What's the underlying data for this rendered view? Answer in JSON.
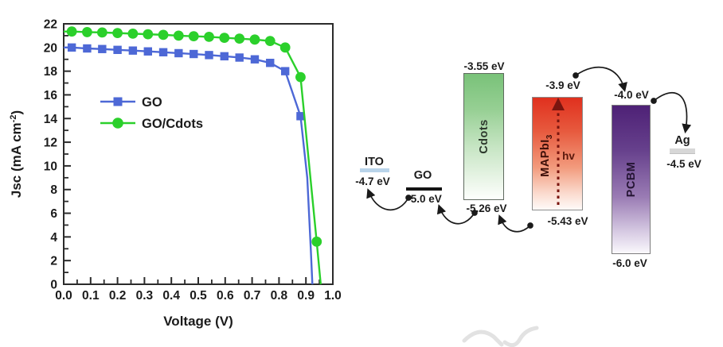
{
  "chart_data": {
    "type": "line",
    "title": "",
    "xlabel": "Voltage (V)",
    "ylabel": {
      "text": "Jsc (mA cm",
      "sup": "-2",
      "close": ")"
    },
    "xlim": [
      0.0,
      1.0
    ],
    "ylim": [
      0,
      22
    ],
    "xticks": [
      "0.0",
      "0.1",
      "0.2",
      "0.3",
      "0.4",
      "0.5",
      "0.6",
      "0.7",
      "0.8",
      "0.9",
      "1.0"
    ],
    "yticks": [
      0,
      2,
      4,
      6,
      8,
      10,
      12,
      14,
      16,
      18,
      20,
      22
    ],
    "x_minor_step": 0.05,
    "y_minor_step": 1,
    "grid": false,
    "legend_position": "inside-center-left",
    "series": [
      {
        "name": "GO",
        "color": "#4d68d6",
        "marker": "square",
        "x": [
          0.03,
          0.087,
          0.143,
          0.2,
          0.257,
          0.313,
          0.37,
          0.427,
          0.483,
          0.54,
          0.597,
          0.653,
          0.71,
          0.767,
          0.823,
          0.88
        ],
        "y": [
          20.0,
          19.92,
          19.87,
          19.8,
          19.74,
          19.67,
          19.6,
          19.52,
          19.45,
          19.36,
          19.26,
          19.15,
          19.0,
          18.7,
          18.0,
          14.2
        ],
        "tail": [
          [
            0.905,
            9.0
          ],
          [
            0.918,
            3.0
          ],
          [
            0.924,
            0
          ]
        ]
      },
      {
        "name": "GO/Cdots",
        "color": "#2bd02b",
        "marker": "circle",
        "x": [
          0.03,
          0.087,
          0.143,
          0.2,
          0.257,
          0.313,
          0.37,
          0.427,
          0.483,
          0.54,
          0.597,
          0.653,
          0.71,
          0.767,
          0.823,
          0.88,
          0.94
        ],
        "y": [
          21.35,
          21.3,
          21.27,
          21.22,
          21.17,
          21.12,
          21.07,
          21.0,
          20.95,
          20.9,
          20.82,
          20.75,
          20.67,
          20.55,
          20.0,
          17.5,
          3.6
        ],
        "tail": [
          [
            0.95,
            1.2
          ],
          [
            0.955,
            0
          ]
        ]
      }
    ]
  },
  "energy_diagram": {
    "ito": {
      "name": "ITO",
      "energy": "-4.7 eV"
    },
    "go": {
      "name": "GO",
      "energy": "-5.0 eV"
    },
    "cdots": {
      "name": "Cdots",
      "top": "-3.55 eV",
      "bottom": "-5.26 eV"
    },
    "mapbi": {
      "name": "MAPbI",
      "sub": "3",
      "top": "-3.9 eV",
      "bottom": "-5.43 eV",
      "photon": "hv"
    },
    "pcbm": {
      "name": "PCBM",
      "top": "-4.0 eV",
      "bottom": "-6.0 eV"
    },
    "ag": {
      "name": "Ag",
      "energy": "-4.5 eV"
    }
  },
  "colors": {
    "go_series": "#4d68d6",
    "cdots_series": "#2bd02b",
    "cdots_band_top": "#79c279",
    "mapbi_band_top": "#e0301e",
    "pcbm_band_top": "#4e2176",
    "ito_level": "#b9d4ea",
    "go_level": "#141414",
    "ag_level": "#d7d7d7",
    "photon_arrow": "#7a150f",
    "axis": "#2b2b2b"
  }
}
